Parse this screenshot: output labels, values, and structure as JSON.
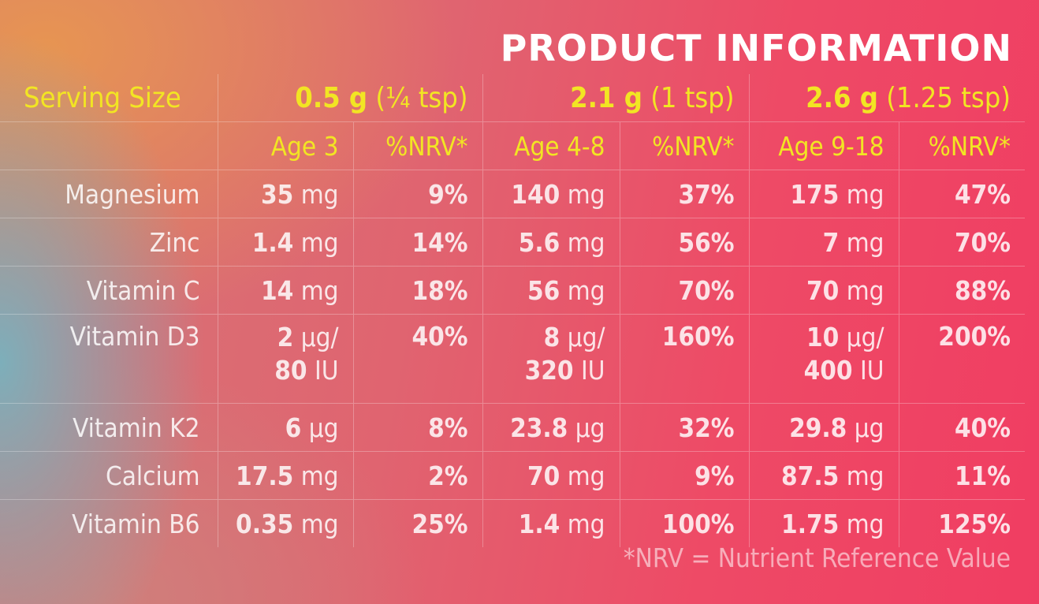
{
  "title": "PRODUCT INFORMATION",
  "serving": {
    "label": "Serving Size",
    "sizes": [
      {
        "amount": "0.5 g",
        "measure": "(¼ tsp)"
      },
      {
        "amount": "2.1 g",
        "measure": "(1 tsp)"
      },
      {
        "amount": "2.6 g",
        "measure": "(1.25 tsp)"
      }
    ]
  },
  "age_headers": [
    "Age 3",
    "%NRV*",
    "Age 4-8",
    "%NRV*",
    "Age 9-18",
    "%NRV*"
  ],
  "nutrients": [
    {
      "name": "Magnesium",
      "values": [
        {
          "num": "35",
          "unit": " mg",
          "nrv": "9%"
        },
        {
          "num": "140",
          "unit": " mg",
          "nrv": "37%"
        },
        {
          "num": "175",
          "unit": " mg",
          "nrv": "47%"
        }
      ]
    },
    {
      "name": "Zinc",
      "values": [
        {
          "num": "1.4",
          "unit": " mg",
          "nrv": "14%"
        },
        {
          "num": "5.6",
          "unit": " mg",
          "nrv": "56%"
        },
        {
          "num": "7",
          "unit": " mg",
          "nrv": "70%"
        }
      ]
    },
    {
      "name": "Vitamin C",
      "values": [
        {
          "num": "14",
          "unit": " mg",
          "nrv": "18%"
        },
        {
          "num": "56",
          "unit": " mg",
          "nrv": "70%"
        },
        {
          "num": "70",
          "unit": " mg",
          "nrv": "88%"
        }
      ]
    },
    {
      "name": "Vitamin D3",
      "values": [
        {
          "num": "2",
          "unit": " µg/",
          "num2": "80",
          "unit2": " IU",
          "nrv": "40%"
        },
        {
          "num": "8",
          "unit": " µg/",
          "num2": "320",
          "unit2": " IU",
          "nrv": "160%"
        },
        {
          "num": "10",
          "unit": " µg/",
          "num2": "400",
          "unit2": " IU",
          "nrv": "200%"
        }
      ]
    },
    {
      "name": "Vitamin K2",
      "values": [
        {
          "num": "6",
          "unit": " µg",
          "nrv": "8%"
        },
        {
          "num": "23.8",
          "unit": " µg",
          "nrv": "32%"
        },
        {
          "num": "29.8",
          "unit": " µg",
          "nrv": "40%"
        }
      ]
    },
    {
      "name": "Calcium",
      "values": [
        {
          "num": "17.5",
          "unit": " mg",
          "nrv": "2%"
        },
        {
          "num": "70",
          "unit": " mg",
          "nrv": "9%"
        },
        {
          "num": "87.5",
          "unit": " mg",
          "nrv": "11%"
        }
      ]
    },
    {
      "name": "Vitamin B6",
      "values": [
        {
          "num": "0.35",
          "unit": " mg",
          "nrv": "25%"
        },
        {
          "num": "1.4",
          "unit": " mg",
          "nrv": "100%"
        },
        {
          "num": "1.75",
          "unit": " mg",
          "nrv": "125%"
        }
      ]
    }
  ],
  "footnote": "*NRV = Nutrient Reference Value",
  "colors": {
    "heading_text": "#f2e523",
    "title_text": "#ffffff",
    "gradient_left": "#e8964f",
    "gradient_right": "#f03d62",
    "accent_teal": "#78b2be"
  }
}
